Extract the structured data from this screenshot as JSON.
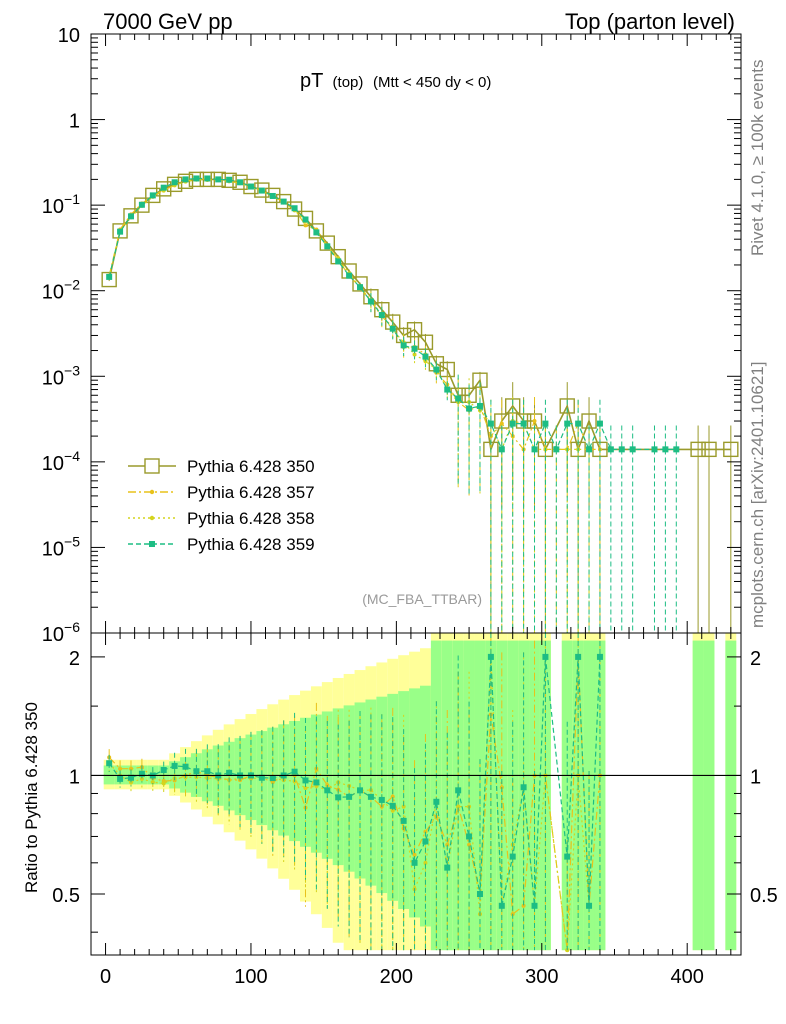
{
  "header": {
    "left": "7000 GeV pp",
    "right": "Top (parton level)"
  },
  "side_labels": {
    "rivet": "Rivet 4.1.0, ≥ 100k events",
    "mcplots": "mcplots.cern.ch [arXiv:2401.10621]"
  },
  "chart_data": {
    "type": "line",
    "title_main": "pT",
    "title_sub": "(top)",
    "title_cut": "(Mtt < 450 dy < 0)",
    "analysis": "(MC_FBA_TTBAR)",
    "xlabel": "",
    "ylabel_ratio": "Ratio to Pythia 6.428 350",
    "xlim": [
      -10,
      437
    ],
    "main_ylim_log10": [
      -6,
      1
    ],
    "ratio_ylim": [
      0.35,
      2.3
    ],
    "x_ticks": [
      "0",
      "100",
      "200",
      "300",
      "400"
    ],
    "main_y_ticks": [
      {
        "b": "10",
        "e": ""
      },
      {
        "b": "1",
        "e": ""
      },
      {
        "b": "10",
        "e": "−1"
      },
      {
        "b": "10",
        "e": "−2"
      },
      {
        "b": "10",
        "e": "−3"
      },
      {
        "b": "10",
        "e": "−4"
      },
      {
        "b": "10",
        "e": "−5"
      },
      {
        "b": "10",
        "e": "−6"
      }
    ],
    "ratio_y_ticks": [
      "0.5",
      "1",
      "2"
    ],
    "legend": [
      {
        "name": "Pythia 6.428 350",
        "color": "#9a9a2b",
        "style": "solid-box"
      },
      {
        "name": "Pythia 6.428 357",
        "color": "#e8c21a",
        "style": "dashdot-star"
      },
      {
        "name": "Pythia 6.428 358",
        "color": "#d4d41e",
        "style": "dotted-dot"
      },
      {
        "name": "Pythia 6.428 359",
        "color": "#1dbd84",
        "style": "dashed-square"
      }
    ],
    "x": [
      2.5,
      10,
      17.5,
      25,
      32.5,
      40,
      47.5,
      55,
      62.5,
      70,
      77.5,
      85,
      92.5,
      100,
      107.5,
      115,
      122.5,
      130,
      137.5,
      145,
      152.5,
      160,
      167.5,
      175,
      182.5,
      190,
      197.5,
      205,
      212.5,
      220,
      227.5,
      235,
      242.5,
      250,
      257.5,
      265,
      272.5,
      280,
      287.5,
      295,
      302.5,
      310,
      317.5,
      325,
      332.5,
      340,
      347.5,
      355,
      362.5,
      370,
      377.5,
      385,
      392.5,
      400,
      407.5,
      415,
      422.5,
      430
    ],
    "series": [
      {
        "name": "Pythia 6.428 350",
        "values": [
          0.0135,
          0.05,
          0.075,
          0.1,
          0.13,
          0.155,
          0.175,
          0.19,
          0.2,
          0.2,
          0.2,
          0.195,
          0.185,
          0.165,
          0.15,
          0.13,
          0.11,
          0.09,
          0.07,
          0.05,
          0.036,
          0.025,
          0.017,
          0.012,
          0.0085,
          0.006,
          0.0043,
          0.003,
          0.0035,
          0.0025,
          0.0014,
          0.0012,
          0.0006,
          0.0006,
          0.0009,
          0.00014,
          0.0003,
          0.00045,
          0.0003,
          0.0003,
          0.00014,
          null,
          0.00045,
          0.00014,
          0.0003,
          0.00014,
          null,
          null,
          null,
          null,
          null,
          null,
          null,
          null,
          0.00014,
          0.00014,
          null,
          0.00014
        ]
      },
      {
        "name": "Pythia 6.428 357",
        "values": [
          0.015,
          0.052,
          0.078,
          0.105,
          0.128,
          0.15,
          0.17,
          0.19,
          0.205,
          0.2,
          0.198,
          0.19,
          0.18,
          0.165,
          0.148,
          0.125,
          0.11,
          0.09,
          0.058,
          0.052,
          0.034,
          0.023,
          0.015,
          0.011,
          0.0075,
          0.005,
          0.0038,
          0.0022,
          0.0022,
          0.0018,
          0.0011,
          0.0008,
          0.0005,
          0.0004,
          0.00045,
          0.0002,
          0.00028,
          0.0002,
          0.00014,
          0.0003,
          0.00014,
          0.00014,
          0.00014,
          0.00028,
          0.00014,
          0.00014,
          null,
          null,
          null,
          null,
          null,
          null,
          null,
          null,
          null,
          null,
          null,
          null
        ]
      },
      {
        "name": "Pythia 6.428 358",
        "values": [
          0.0145,
          0.05,
          0.072,
          0.098,
          0.125,
          0.148,
          0.172,
          0.188,
          0.198,
          0.197,
          0.196,
          0.19,
          0.182,
          0.162,
          0.148,
          0.128,
          0.107,
          0.087,
          0.065,
          0.047,
          0.033,
          0.024,
          0.016,
          0.011,
          0.0078,
          0.0052,
          0.0035,
          0.0025,
          0.0018,
          0.0015,
          0.0012,
          0.0007,
          0.0005,
          0.0005,
          0.0004,
          0.00028,
          0.00014,
          0.0003,
          0.00028,
          0.00014,
          0.00014,
          null,
          0.00014,
          0.00014,
          0.00014,
          null,
          null,
          null,
          null,
          null,
          null,
          null,
          null,
          null,
          null,
          null,
          null,
          null
        ]
      },
      {
        "name": "Pythia 6.428 359",
        "values": [
          0.0145,
          0.049,
          0.074,
          0.101,
          0.13,
          0.16,
          0.185,
          0.2,
          0.205,
          0.205,
          0.2,
          0.198,
          0.185,
          0.165,
          0.148,
          0.128,
          0.11,
          0.092,
          0.068,
          0.048,
          0.033,
          0.022,
          0.015,
          0.011,
          0.0075,
          0.0052,
          0.0036,
          0.0023,
          0.0021,
          0.0017,
          0.0012,
          0.0007,
          0.00055,
          0.00042,
          0.00045,
          0.00028,
          0.00014,
          0.00028,
          0.00028,
          0.00014,
          0.00028,
          0.00014,
          0.00028,
          0.00028,
          0.00014,
          0.00028,
          0.00014,
          0.00014,
          0.00014,
          null,
          0.00014,
          0.00014,
          0.00014,
          null,
          null,
          null,
          null,
          null
        ]
      }
    ]
  }
}
